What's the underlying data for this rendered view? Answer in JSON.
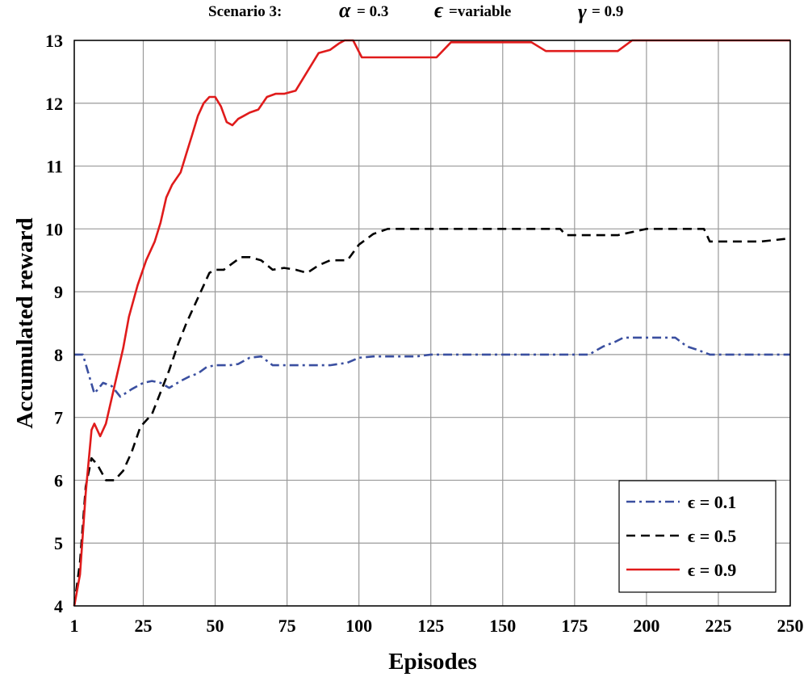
{
  "chart_data": {
    "type": "line",
    "title": "Scenario 3:",
    "title_params": [
      {
        "symbol": "α",
        "text": " = 0.3"
      },
      {
        "symbol": "ϵ",
        "text": " =variable"
      },
      {
        "symbol": "γ",
        "text": " = 0.9"
      }
    ],
    "xlabel": "Episodes",
    "ylabel": "Accumulated reward",
    "xlim": [
      1,
      250
    ],
    "ylim": [
      4,
      13
    ],
    "xticks": [
      1,
      25,
      50,
      75,
      100,
      125,
      150,
      175,
      200,
      225,
      250
    ],
    "yticks": [
      4,
      5,
      6,
      7,
      8,
      9,
      10,
      11,
      12,
      13
    ],
    "grid": true,
    "legend_position": "bottom-right",
    "series": [
      {
        "name": "ϵ = 0.1",
        "color": "#3a4fa0",
        "dash": "dashdot",
        "x": [
          1,
          4,
          8,
          11,
          14,
          17,
          21,
          25,
          28,
          31,
          34,
          38,
          41,
          44,
          47,
          50,
          55,
          58,
          62,
          66,
          70,
          80,
          90,
          96,
          100,
          105,
          110,
          120,
          125,
          140,
          160,
          180,
          185,
          189,
          192,
          198,
          204,
          210,
          214,
          218,
          222,
          230,
          240,
          250
        ],
        "y": [
          8.0,
          8.0,
          7.38,
          7.55,
          7.5,
          7.33,
          7.45,
          7.55,
          7.58,
          7.55,
          7.47,
          7.58,
          7.65,
          7.7,
          7.8,
          7.83,
          7.83,
          7.85,
          7.95,
          7.97,
          7.83,
          7.83,
          7.83,
          7.87,
          7.95,
          7.97,
          7.97,
          7.97,
          8.0,
          8.0,
          8.0,
          8.0,
          8.13,
          8.2,
          8.27,
          8.27,
          8.27,
          8.27,
          8.13,
          8.07,
          8.0,
          8.0,
          8.0,
          8.0
        ]
      },
      {
        "name": "ϵ = 0.5",
        "color": "#000000",
        "dash": "dashed",
        "x": [
          1,
          3,
          5,
          7,
          9,
          12,
          15,
          18,
          21,
          24,
          28,
          31,
          34,
          37,
          40,
          43,
          46,
          48,
          50,
          53,
          56,
          59,
          62,
          66,
          70,
          74,
          78,
          82,
          86,
          90,
          96,
          100,
          105,
          110,
          120,
          130,
          140,
          150,
          160,
          170,
          172,
          180,
          190,
          200,
          210,
          220,
          222,
          230,
          240,
          250
        ],
        "y": [
          4.0,
          4.7,
          5.9,
          6.35,
          6.25,
          6.0,
          6.0,
          6.15,
          6.45,
          6.85,
          7.05,
          7.4,
          7.75,
          8.15,
          8.5,
          8.8,
          9.1,
          9.3,
          9.35,
          9.35,
          9.45,
          9.55,
          9.55,
          9.5,
          9.35,
          9.38,
          9.35,
          9.3,
          9.42,
          9.5,
          9.5,
          9.75,
          9.92,
          10.0,
          10.0,
          10.0,
          10.0,
          10.0,
          10.0,
          10.0,
          9.9,
          9.9,
          9.9,
          10.0,
          10.0,
          10.0,
          9.8,
          9.8,
          9.8,
          9.85
        ]
      },
      {
        "name": "ϵ = 0.9",
        "color": "#e01b1b",
        "dash": "solid",
        "x": [
          1,
          3,
          5,
          7,
          8,
          10,
          12,
          14,
          16,
          18,
          20,
          23,
          26,
          29,
          31,
          33,
          35,
          38,
          40,
          42,
          44,
          46,
          48,
          50,
          52,
          54,
          56,
          58,
          60,
          62,
          65,
          68,
          71,
          74,
          78,
          82,
          86,
          90,
          93,
          95,
          98,
          101,
          104,
          110,
          120,
          127,
          132,
          140,
          150,
          160,
          165,
          170,
          180,
          190,
          195,
          200,
          210,
          220,
          230,
          240,
          250
        ],
        "y": [
          4.0,
          4.5,
          5.8,
          6.8,
          6.9,
          6.7,
          6.9,
          7.3,
          7.7,
          8.1,
          8.6,
          9.1,
          9.5,
          9.8,
          10.1,
          10.5,
          10.7,
          10.9,
          11.2,
          11.5,
          11.8,
          12.0,
          12.1,
          12.1,
          11.95,
          11.7,
          11.65,
          11.75,
          11.8,
          11.85,
          11.9,
          12.1,
          12.15,
          12.15,
          12.2,
          12.5,
          12.8,
          12.85,
          12.95,
          13.0,
          13.0,
          12.73,
          12.73,
          12.73,
          12.73,
          12.73,
          12.97,
          12.97,
          12.97,
          12.97,
          12.83,
          12.83,
          12.83,
          12.83,
          13.0,
          13.0,
          13.0,
          13.0,
          13.0,
          13.0,
          13.0
        ]
      }
    ]
  }
}
